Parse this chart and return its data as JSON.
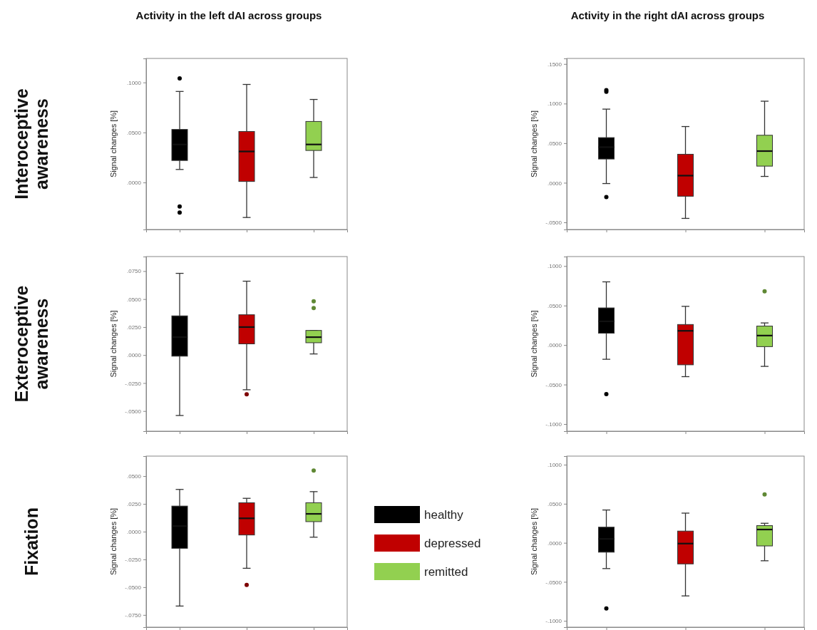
{
  "chart_data": [
    {
      "type": "box",
      "title": "Activity in the left dAI across groups",
      "annotations": [
        "Interoceptive awareness"
      ],
      "ylabel": "Signal changes [%]",
      "categories": [
        null,
        null,
        null
      ],
      "tick_labels": "y",
      "ylim": [
        -0.047,
        0.124
      ],
      "yticks": [
        {
          "value": 0,
          "label": ".0000"
        },
        {
          "value": 0.05,
          "label": ".0500"
        },
        {
          "value": 0.1,
          "label": ".1000"
        }
      ],
      "series": [
        {
          "color": "#000000",
          "boxes": [
            {
              "low": 0.013,
              "q1": 0.022,
              "median": 0.038,
              "q3": 0.053,
              "high": 0.091,
              "outliers": [
                0.104,
                -0.024,
                -0.03
              ]
            },
            null,
            null
          ]
        },
        {
          "color": "#c00000",
          "boxes": [
            null,
            {
              "low": -0.035,
              "q1": 0.001,
              "median": 0.031,
              "q3": 0.051,
              "high": 0.098
            },
            null
          ]
        },
        {
          "color": "#92d050",
          "boxes": [
            null,
            null,
            {
              "low": 0.005,
              "q1": 0.032,
              "median": 0.038,
              "q3": 0.061,
              "high": 0.083
            }
          ]
        }
      ]
    },
    {
      "type": "box",
      "title": "Activity in the right dAI across groups",
      "ylabel": "Signal changes [%]",
      "categories": [
        null,
        null,
        null
      ],
      "tick_labels": "y",
      "ylim": [
        -0.059,
        0.157
      ],
      "yticks": [
        {
          "value": -0.05,
          "label": "-.0500"
        },
        {
          "value": 0,
          "label": ".0000"
        },
        {
          "value": 0.05,
          "label": ".0500"
        },
        {
          "value": 0.1,
          "label": ".1000"
        },
        {
          "value": 0.15,
          "label": ".1500"
        }
      ],
      "series": [
        {
          "color": "#000000",
          "boxes": [
            {
              "low": -0.001,
              "q1": 0.03,
              "median": 0.045,
              "q3": 0.057,
              "high": 0.093,
              "outliers": [
                0.117,
                0.115,
                -0.018
              ]
            },
            null,
            null
          ]
        },
        {
          "color": "#c00000",
          "boxes": [
            null,
            {
              "low": -0.045,
              "q1": -0.017,
              "median": 0.009,
              "q3": 0.036,
              "high": 0.071
            },
            null
          ]
        },
        {
          "color": "#92d050",
          "boxes": [
            null,
            null,
            {
              "low": 0.008,
              "q1": 0.021,
              "median": 0.04,
              "q3": 0.06,
              "high": 0.103
            }
          ]
        }
      ]
    },
    {
      "type": "box",
      "annotations": [
        "Exteroceptive awareness"
      ],
      "ylabel": "Signal changes [%]",
      "categories": [
        null,
        null,
        null
      ],
      "tick_labels": "y",
      "ylim": [
        -0.068,
        0.088
      ],
      "yticks": [
        {
          "value": -0.05,
          "label": "-.0500"
        },
        {
          "value": -0.025,
          "label": "-.0250"
        },
        {
          "value": 0,
          "label": ".0000"
        },
        {
          "value": 0.025,
          "label": ".0250"
        },
        {
          "value": 0.05,
          "label": ".0500"
        },
        {
          "value": 0.075,
          "label": ".0750"
        }
      ],
      "series": [
        {
          "color": "#000000",
          "boxes": [
            {
              "low": -0.054,
              "q1": -0.001,
              "median": 0.016,
              "q3": 0.035,
              "high": 0.073
            },
            null,
            null
          ]
        },
        {
          "color": "#c00000",
          "boxes": [
            null,
            {
              "low": -0.031,
              "q1": 0.01,
              "median": 0.025,
              "q3": 0.036,
              "high": 0.066,
              "outliers": [
                -0.035
              ]
            },
            null
          ]
        },
        {
          "color": "#92d050",
          "boxes": [
            null,
            null,
            {
              "low": 0.001,
              "q1": 0.011,
              "median": 0.016,
              "q3": 0.022,
              "high": 0.022,
              "outliers": [
                0.048,
                0.042
              ]
            }
          ]
        }
      ]
    },
    {
      "type": "box",
      "ylabel": "Signal changes [%]",
      "categories": [
        null,
        null,
        null
      ],
      "tick_labels": "y",
      "ylim": [
        -0.109,
        0.112
      ],
      "yticks": [
        {
          "value": -0.1,
          "label": "-.1000"
        },
        {
          "value": -0.05,
          "label": "-.0500"
        },
        {
          "value": 0,
          "label": ".0000"
        },
        {
          "value": 0.05,
          "label": ".0500"
        },
        {
          "value": 0.1,
          "label": ".1000"
        }
      ],
      "series": [
        {
          "color": "#000000",
          "boxes": [
            {
              "low": -0.018,
              "q1": 0.015,
              "median": 0.03,
              "q3": 0.047,
              "high": 0.08,
              "outliers": [
                -0.062
              ]
            },
            null,
            null
          ]
        },
        {
          "color": "#c00000",
          "boxes": [
            null,
            {
              "low": -0.04,
              "q1": -0.025,
              "median": 0.018,
              "q3": 0.026,
              "high": 0.049
            },
            null
          ]
        },
        {
          "color": "#92d050",
          "boxes": [
            null,
            null,
            {
              "low": -0.027,
              "q1": -0.002,
              "median": 0.012,
              "q3": 0.024,
              "high": 0.028,
              "outliers": [
                0.068
              ]
            }
          ]
        }
      ]
    },
    {
      "type": "box",
      "annotations": [
        "Fixation"
      ],
      "ylabel": "Signal changes [%]",
      "categories": [
        null,
        null,
        null
      ],
      "tick_labels": "y",
      "legend": "right",
      "ylim": [
        -0.086,
        0.068
      ],
      "yticks": [
        {
          "value": -0.075,
          "label": "-.0750"
        },
        {
          "value": -0.05,
          "label": "-.0500"
        },
        {
          "value": -0.025,
          "label": "-.0250"
        },
        {
          "value": 0,
          "label": ".0000"
        },
        {
          "value": 0.025,
          "label": ".0250"
        },
        {
          "value": 0.05,
          "label": ".0500"
        }
      ],
      "series": [
        {
          "name": "healthy",
          "color": "#000000",
          "boxes": [
            {
              "low": -0.067,
              "q1": -0.015,
              "median": 0.005,
              "q3": 0.023,
              "high": 0.038
            },
            null,
            null
          ]
        },
        {
          "name": "depressed",
          "color": "#c00000",
          "boxes": [
            null,
            {
              "low": -0.033,
              "q1": -0.003,
              "median": 0.012,
              "q3": 0.026,
              "high": 0.03,
              "outliers": [
                -0.048
              ]
            },
            null
          ]
        },
        {
          "name": "remitted",
          "color": "#92d050",
          "boxes": [
            null,
            null,
            {
              "low": -0.005,
              "q1": 0.009,
              "median": 0.016,
              "q3": 0.026,
              "high": 0.036,
              "outliers": [
                0.055
              ]
            }
          ]
        }
      ]
    },
    {
      "type": "box",
      "ylabel": "Signal changes [%]",
      "categories": [
        null,
        null,
        null
      ],
      "tick_labels": "y",
      "ylim": [
        -0.108,
        0.111
      ],
      "yticks": [
        {
          "value": -0.1,
          "label": "-.1000"
        },
        {
          "value": -0.05,
          "label": "-.0500"
        },
        {
          "value": 0,
          "label": ".0000"
        },
        {
          "value": 0.05,
          "label": ".0500"
        },
        {
          "value": 0.1,
          "label": ".1000"
        }
      ],
      "series": [
        {
          "color": "#000000",
          "boxes": [
            {
              "low": -0.033,
              "q1": -0.012,
              "median": 0.005,
              "q3": 0.02,
              "high": 0.042,
              "outliers": [
                -0.084
              ]
            },
            null,
            null
          ]
        },
        {
          "color": "#c00000",
          "boxes": [
            null,
            {
              "low": -0.068,
              "q1": -0.027,
              "median": -0.001,
              "q3": 0.015,
              "high": 0.038
            },
            null
          ]
        },
        {
          "color": "#92d050",
          "boxes": [
            null,
            null,
            {
              "low": -0.023,
              "q1": -0.004,
              "median": 0.017,
              "q3": 0.022,
              "high": 0.025,
              "outliers": [
                0.062
              ]
            }
          ]
        }
      ]
    }
  ]
}
